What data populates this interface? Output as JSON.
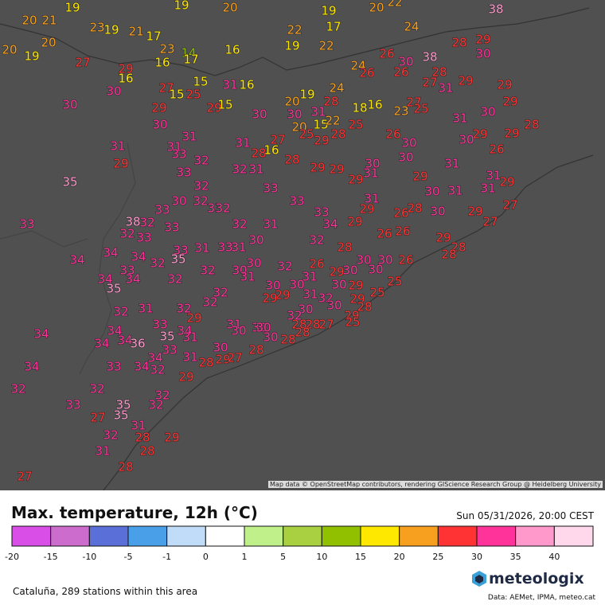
{
  "header": {
    "title": "Max. temperature, 12h (°C)",
    "time": "Sun 05/31/2026, 20:00 CEST"
  },
  "legend": {
    "colors": [
      "#d94ee6",
      "#cc6ccc",
      "#5a6fd8",
      "#4aa0e8",
      "#c0dcf8",
      "#ffffff",
      "#bff08a",
      "#a8d040",
      "#90c000",
      "#ffe800",
      "#f7a020",
      "#ff3333",
      "#ff3399",
      "#ff99cc",
      "#ffd8ec"
    ],
    "labels": [
      -20,
      -15,
      -10,
      -5,
      -1,
      0,
      1,
      5,
      10,
      15,
      20,
      25,
      30,
      35,
      40
    ]
  },
  "stations": [
    20,
    21,
    19,
    19,
    20,
    19,
    20,
    22,
    38,
    23,
    19,
    21,
    17,
    22,
    17,
    24,
    20,
    20,
    19,
    23,
    16,
    14,
    17,
    16,
    19,
    22,
    28,
    29,
    30,
    27,
    29,
    16,
    26,
    30,
    38,
    24,
    26,
    26,
    28,
    27,
    29,
    29,
    15,
    31,
    16,
    24,
    30,
    30,
    27,
    15,
    25,
    19,
    20,
    28,
    27,
    29,
    29,
    29,
    15,
    18,
    16,
    23,
    25,
    31,
    30,
    30,
    31,
    30,
    31,
    30,
    20,
    15,
    22,
    25,
    28,
    26,
    31,
    27,
    25,
    29,
    28,
    29,
    30,
    29,
    31,
    31,
    31,
    30,
    26,
    33,
    28,
    16,
    30,
    29,
    32,
    28,
    29,
    29,
    30,
    31,
    32,
    31,
    33,
    31,
    29,
    31,
    35,
    32,
    33,
    29,
    30,
    31,
    31,
    29,
    33,
    30,
    32,
    33,
    32,
    33,
    31,
    29,
    27,
    33,
    38,
    32,
    33,
    32,
    31,
    33,
    34,
    29,
    28,
    30,
    29,
    27,
    26,
    32,
    33,
    30,
    26,
    26,
    29,
    34,
    34,
    34,
    33,
    31,
    33,
    31,
    32,
    28,
    28,
    28,
    32,
    35,
    30,
    32,
    26,
    30,
    30,
    26,
    32,
    30,
    33,
    34,
    34,
    32,
    31,
    31,
    29,
    30,
    30,
    29,
    30,
    25,
    35,
    32,
    30,
    30,
    29,
    29,
    31,
    32,
    25,
    29,
    32,
    30,
    30,
    28,
    32,
    31,
    32,
    29,
    32,
    29,
    33,
    31,
    30,
    28,
    28,
    27,
    25,
    34,
    34,
    34,
    30,
    30,
    35,
    31,
    34,
    34,
    36,
    30,
    28,
    28,
    33,
    30,
    28,
    34,
    31,
    28,
    29,
    27,
    34,
    33,
    34,
    32,
    29,
    32,
    32,
    32,
    33,
    35,
    32,
    27,
    35,
    31,
    32,
    28,
    29,
    31,
    28,
    28,
    27
  ],
  "footer": {
    "area": "Cataluña, 289 stations within this area",
    "brand": "meteologix",
    "source": "Data: AEMet, IPMA, meteo.cat"
  },
  "attribution": "Map data © OpenStreetMap contributors, rendering GIScience Research Group @ Heidelberg University"
}
